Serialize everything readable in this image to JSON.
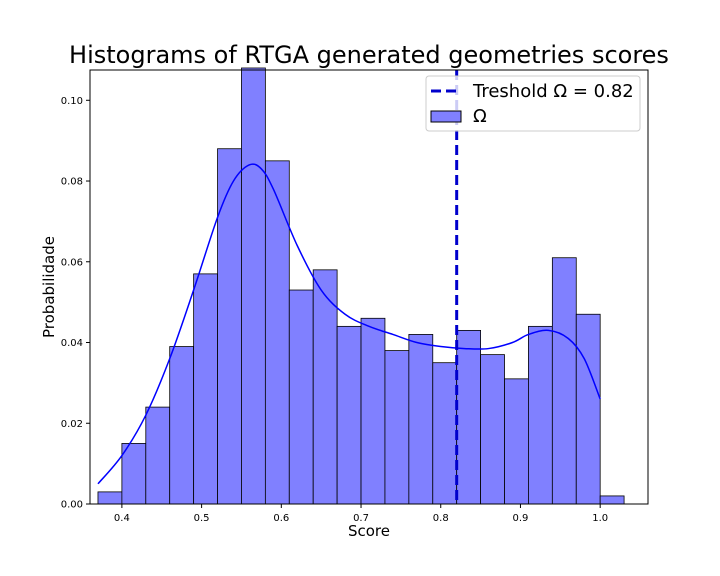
{
  "chart_data": {
    "type": "bar",
    "title": "Histograms of RTGA generated geometries scores",
    "xlabel": "Score",
    "ylabel": "Probabilidade",
    "xlim": [
      0.36,
      1.06
    ],
    "ylim": [
      0.0,
      0.1075
    ],
    "x_ticks": [
      "0.4",
      "0.5",
      "0.6",
      "0.7",
      "0.8",
      "0.9",
      "1.0"
    ],
    "y_ticks": [
      "0.00",
      "0.02",
      "0.04",
      "0.06",
      "0.08",
      "0.10"
    ],
    "bin_start": 0.37,
    "bin_width": 0.03,
    "values": [
      0.003,
      0.015,
      0.024,
      0.039,
      0.057,
      0.088,
      0.108,
      0.085,
      0.053,
      0.058,
      0.044,
      0.046,
      0.038,
      0.042,
      0.035,
      0.043,
      0.037,
      0.031,
      0.044,
      0.061,
      0.047,
      0.002
    ],
    "kde": {
      "x": [
        0.37,
        0.4,
        0.43,
        0.46,
        0.49,
        0.52,
        0.54,
        0.56,
        0.575,
        0.59,
        0.62,
        0.65,
        0.68,
        0.71,
        0.74,
        0.77,
        0.8,
        0.83,
        0.86,
        0.89,
        0.91,
        0.935,
        0.96,
        0.98,
        1.0
      ],
      "y": [
        0.005,
        0.012,
        0.022,
        0.036,
        0.053,
        0.071,
        0.08,
        0.084,
        0.083,
        0.078,
        0.064,
        0.053,
        0.047,
        0.044,
        0.042,
        0.04,
        0.039,
        0.0385,
        0.0385,
        0.04,
        0.042,
        0.043,
        0.041,
        0.036,
        0.026
      ]
    },
    "threshold": {
      "value": 0.82,
      "label": "Treshold Ω = 0.82"
    },
    "series": [
      {
        "name": "Ω",
        "color": "#8080ff"
      }
    ],
    "legend_position": "top-right",
    "grid": false,
    "colors": {
      "bar_fill": "#8080ff",
      "bar_edge": "#000000",
      "kde_line": "#0000ff",
      "threshold_line": "#0000cc"
    }
  }
}
